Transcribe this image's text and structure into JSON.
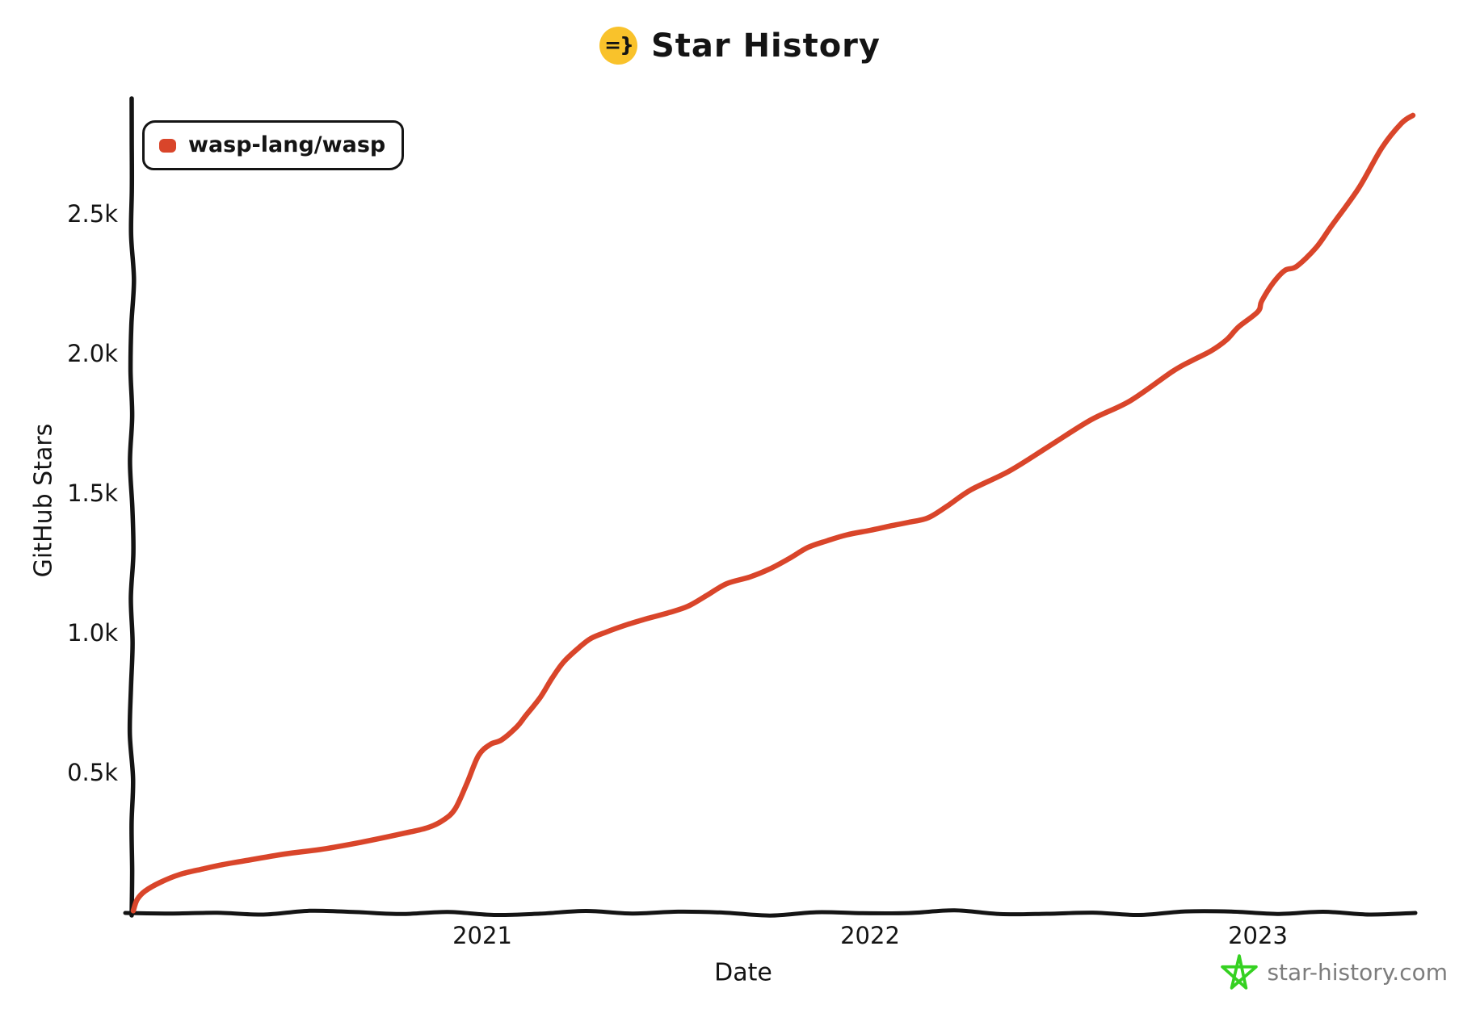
{
  "title": {
    "text": "Star History",
    "logo_glyph": "=}"
  },
  "legend": {
    "series": [
      {
        "label": "wasp-lang/wasp",
        "color": "#d9452a"
      }
    ]
  },
  "axes": {
    "x": {
      "label": "Date",
      "ticks": [
        {
          "label": "2021",
          "value": 2021
        },
        {
          "label": "2022",
          "value": 2022
        },
        {
          "label": "2023",
          "value": 2023
        }
      ]
    },
    "y": {
      "label": "GitHub Stars",
      "ticks": [
        {
          "label": "0.5k",
          "value": 500
        },
        {
          "label": "1.0k",
          "value": 1000
        },
        {
          "label": "1.5k",
          "value": 1500
        },
        {
          "label": "2.0k",
          "value": 2000
        },
        {
          "label": "2.5k",
          "value": 2500
        }
      ]
    }
  },
  "watermark": {
    "text": "star-history.com",
    "icon_color": "#35d121",
    "text_color": "#7d7d7d"
  },
  "colors": {
    "axis": "#141414",
    "series_red": "#d9452a",
    "logo_yellow": "#f9c22b"
  },
  "chart_data": {
    "type": "line",
    "title": "Star History",
    "xlabel": "Date",
    "ylabel": "GitHub Stars",
    "x_unit": "decimal_year",
    "xlim": [
      2020.09,
      2023.42
    ],
    "ylim": [
      0,
      2900
    ],
    "grid": false,
    "legend_position": "top-left",
    "series": [
      {
        "name": "wasp-lang/wasp",
        "color": "#d9452a",
        "points": [
          [
            2020.1,
            5
          ],
          [
            2020.11,
            45
          ],
          [
            2020.13,
            75
          ],
          [
            2020.17,
            107
          ],
          [
            2020.22,
            135
          ],
          [
            2020.28,
            155
          ],
          [
            2020.33,
            170
          ],
          [
            2020.38,
            182
          ],
          [
            2020.49,
            208
          ],
          [
            2020.59,
            226
          ],
          [
            2020.69,
            251
          ],
          [
            2020.8,
            283
          ],
          [
            2020.86,
            303
          ],
          [
            2020.9,
            330
          ],
          [
            2020.93,
            370
          ],
          [
            2020.96,
            460
          ],
          [
            2020.99,
            560
          ],
          [
            2021.02,
            600
          ],
          [
            2021.05,
            617
          ],
          [
            2021.09,
            665
          ],
          [
            2021.11,
            700
          ],
          [
            2021.15,
            770
          ],
          [
            2021.18,
            838
          ],
          [
            2021.21,
            896
          ],
          [
            2021.25,
            948
          ],
          [
            2021.28,
            980
          ],
          [
            2021.32,
            1003
          ],
          [
            2021.37,
            1028
          ],
          [
            2021.42,
            1049
          ],
          [
            2021.48,
            1072
          ],
          [
            2021.53,
            1095
          ],
          [
            2021.58,
            1135
          ],
          [
            2021.63,
            1176
          ],
          [
            2021.69,
            1200
          ],
          [
            2021.74,
            1228
          ],
          [
            2021.79,
            1265
          ],
          [
            2021.84,
            1306
          ],
          [
            2021.89,
            1330
          ],
          [
            2021.94,
            1351
          ],
          [
            2022.0,
            1367
          ],
          [
            2022.05,
            1382
          ],
          [
            2022.1,
            1396
          ],
          [
            2022.15,
            1412
          ],
          [
            2022.2,
            1455
          ],
          [
            2022.26,
            1512
          ],
          [
            2022.36,
            1580
          ],
          [
            2022.46,
            1667
          ],
          [
            2022.57,
            1763
          ],
          [
            2022.67,
            1830
          ],
          [
            2022.78,
            1936
          ],
          [
            2022.83,
            1975
          ],
          [
            2022.88,
            2010
          ],
          [
            2022.92,
            2050
          ],
          [
            2022.95,
            2095
          ],
          [
            2023.0,
            2150
          ],
          [
            2023.01,
            2188
          ],
          [
            2023.04,
            2254
          ],
          [
            2023.07,
            2298
          ],
          [
            2023.1,
            2312
          ],
          [
            2023.15,
            2379
          ],
          [
            2023.19,
            2457
          ],
          [
            2023.26,
            2592
          ],
          [
            2023.32,
            2737
          ],
          [
            2023.37,
            2824
          ],
          [
            2023.4,
            2853
          ]
        ]
      }
    ]
  }
}
